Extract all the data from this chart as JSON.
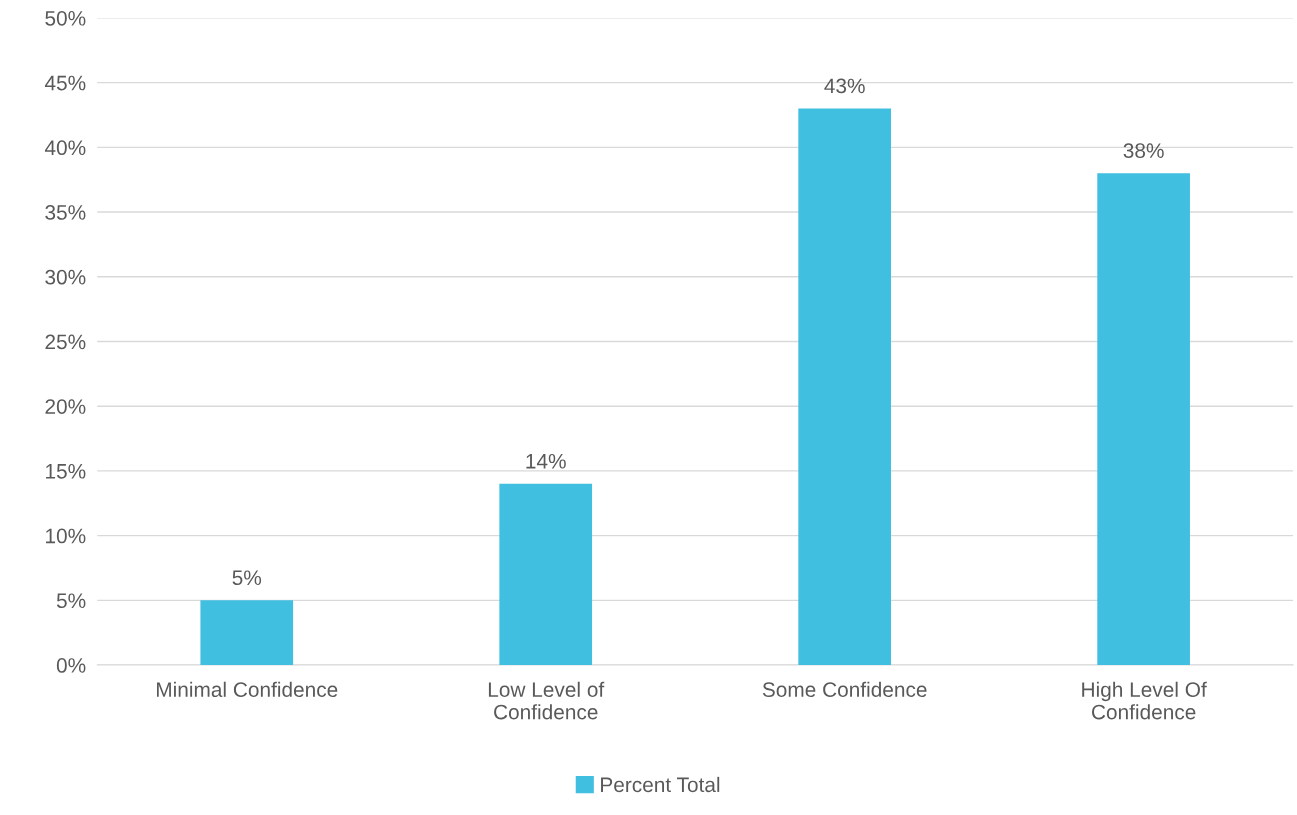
{
  "chart_data": {
    "type": "bar",
    "categories": [
      "Minimal Confidence",
      "Low Level of\nConfidence",
      "Some Confidence",
      "High Level Of\nConfidence"
    ],
    "series": [
      {
        "name": "Percent Total",
        "color": "#41bfe0",
        "values": [
          5,
          14,
          43,
          38
        ],
        "value_labels": [
          "5%",
          "14%",
          "43%",
          "38%"
        ]
      }
    ],
    "ylim": [
      0,
      50
    ],
    "yticks": [
      {
        "value": 0,
        "label": "0%"
      },
      {
        "value": 5,
        "label": "5%"
      },
      {
        "value": 10,
        "label": "10%"
      },
      {
        "value": 15,
        "label": "15%"
      },
      {
        "value": 20,
        "label": "20%"
      },
      {
        "value": 25,
        "label": "25%"
      },
      {
        "value": 30,
        "label": "30%"
      },
      {
        "value": 35,
        "label": "35%"
      },
      {
        "value": 40,
        "label": "40%"
      },
      {
        "value": 45,
        "label": "45%"
      },
      {
        "value": 50,
        "label": "50%"
      }
    ],
    "grid": "y",
    "legend": "bottom"
  }
}
